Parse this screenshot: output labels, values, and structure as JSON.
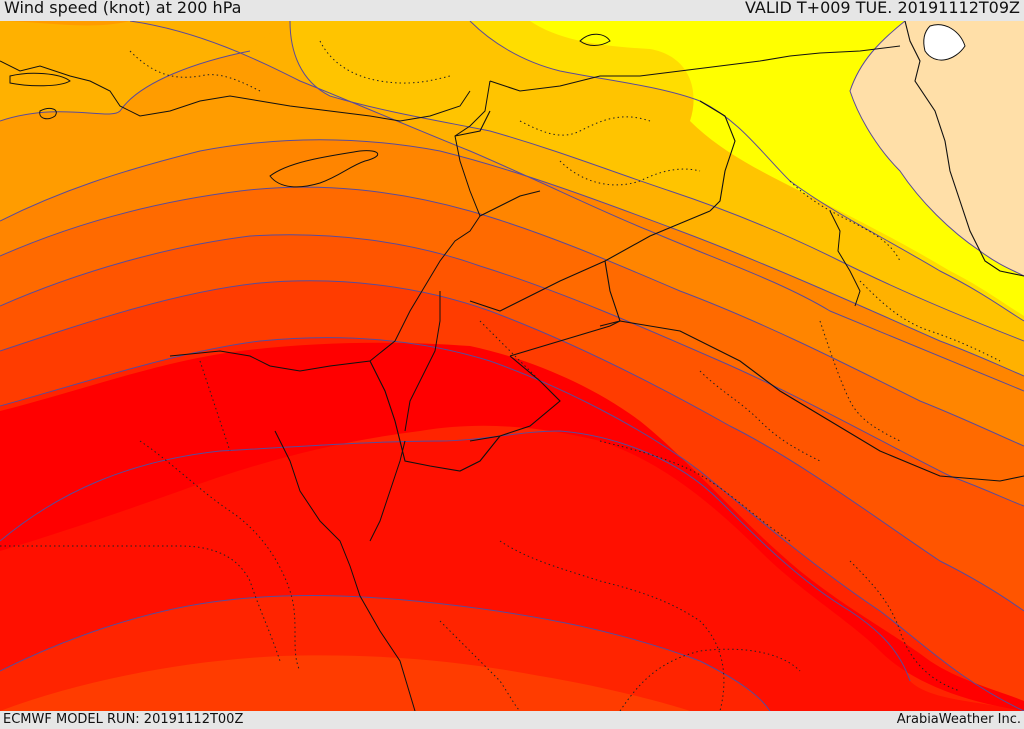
{
  "header": {
    "title": "Wind speed (knot) at 200 hPa",
    "valid": "VALID T+009 TUE. 20191112T09Z"
  },
  "footer": {
    "model_run": "ECMWF MODEL RUN: 20191112T00Z",
    "credit": "ArabiaWeather Inc."
  },
  "map": {
    "field": "wind speed",
    "level": "200 hPa",
    "units": "knot",
    "bands": [
      {
        "name": "band-1",
        "color": "#ffdfa8"
      },
      {
        "name": "band-2",
        "color": "#ffff00"
      },
      {
        "name": "band-3",
        "color": "#ffdd00"
      },
      {
        "name": "band-4",
        "color": "#ffc400"
      },
      {
        "name": "band-5",
        "color": "#ffb100"
      },
      {
        "name": "band-6",
        "color": "#ff9c00"
      },
      {
        "name": "band-7",
        "color": "#ff8500"
      },
      {
        "name": "band-8",
        "color": "#ff6a00"
      },
      {
        "name": "band-9",
        "color": "#ff5500"
      },
      {
        "name": "band-10",
        "color": "#ff3c00"
      },
      {
        "name": "band-11",
        "color": "#ff2400"
      },
      {
        "name": "band-12",
        "color": "#ff0000"
      }
    ],
    "contour_color": "#5a4b9a",
    "border_color": "#111111"
  }
}
